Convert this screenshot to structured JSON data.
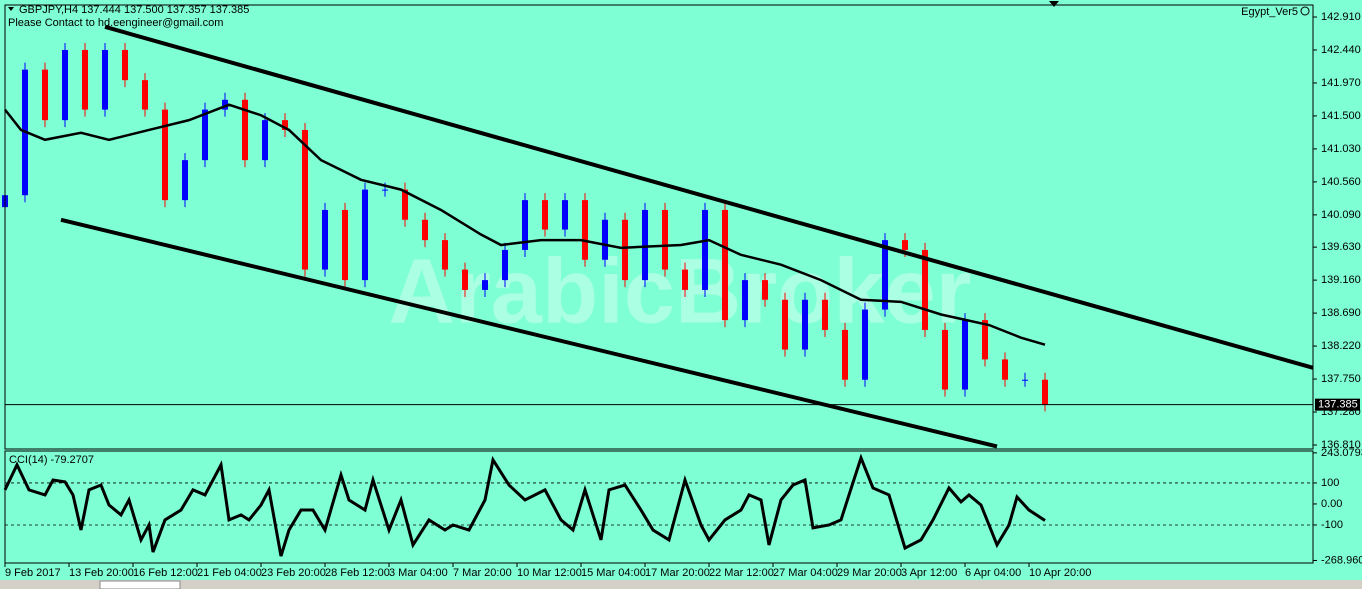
{
  "chart_data": [
    {
      "type": "candlestick",
      "title": "GBPJPY,H4  137.444 137.500 137.357 137.385",
      "subtitle": "Please Contact to hd.eengineer@gmail.com",
      "annotations": [
        "Egypt_Ver5",
        "ArabicBroker"
      ],
      "up_color": "#0000ff",
      "down_color": "#ff0000",
      "xlim": [
        0,
        327
      ],
      "ylim": [
        136.753,
        143.081
      ],
      "yticks": [
        {
          "value": 142.91,
          "label": "142.910"
        },
        {
          "value": 142.44,
          "label": "142.440"
        },
        {
          "value": 141.97,
          "label": "141.970"
        },
        {
          "value": 141.5,
          "label": "141.500"
        },
        {
          "value": 141.03,
          "label": "141.030"
        },
        {
          "value": 140.56,
          "label": "140.560"
        },
        {
          "value": 140.09,
          "label": "140.090"
        },
        {
          "value": 139.63,
          "label": "139.630"
        },
        {
          "value": 139.16,
          "label": "139.160"
        },
        {
          "value": 138.69,
          "label": "138.690"
        },
        {
          "value": 138.22,
          "label": "138.220"
        },
        {
          "value": 137.75,
          "label": "137.750"
        },
        {
          "value": 137.28,
          "label": "137.280"
        },
        {
          "value": 136.81,
          "label": "136.810"
        }
      ],
      "last_price": {
        "value": 137.385,
        "label": "137.385"
      },
      "candles": {
        "x": [
          0,
          5,
          10,
          15,
          20,
          25,
          30,
          35,
          40,
          45,
          50,
          55,
          60,
          65,
          70,
          75,
          80,
          85,
          90,
          95,
          100,
          105,
          110,
          115,
          120,
          125,
          130,
          135,
          140,
          145,
          150,
          155,
          160,
          165,
          170,
          175,
          180,
          185,
          190,
          195,
          200,
          205,
          210,
          215,
          220,
          225,
          230,
          235,
          240,
          245,
          250,
          255,
          260
        ],
        "open": [
          140.2,
          140.37,
          142.16,
          141.44,
          142.44,
          141.59,
          142.44,
          142.01,
          141.59,
          140.3,
          140.87,
          141.59,
          141.73,
          140.87,
          141.44,
          141.3,
          139.31,
          140.16,
          139.16,
          140.45,
          140.45,
          140.02,
          139.73,
          139.31,
          139.02,
          139.16,
          139.59,
          140.3,
          139.88,
          140.3,
          139.45,
          140.02,
          139.16,
          140.16,
          139.31,
          139.02,
          140.16,
          138.59,
          139.16,
          138.88,
          138.17,
          138.88,
          138.45,
          137.74,
          138.74,
          139.73,
          139.59,
          138.45,
          137.6,
          138.59,
          138.03,
          137.74,
          137.74
        ],
        "high": [
          140.47,
          142.26,
          142.26,
          142.54,
          142.54,
          142.54,
          142.54,
          142.11,
          141.69,
          140.97,
          141.69,
          141.83,
          141.83,
          141.54,
          141.54,
          141.4,
          140.26,
          140.26,
          140.55,
          140.55,
          140.55,
          140.12,
          139.83,
          139.41,
          139.26,
          139.69,
          140.4,
          140.4,
          140.4,
          140.4,
          140.12,
          140.12,
          140.26,
          140.26,
          139.41,
          140.26,
          140.26,
          139.26,
          139.26,
          138.98,
          138.98,
          138.98,
          138.55,
          138.84,
          139.83,
          139.83,
          139.69,
          138.55,
          138.69,
          138.69,
          138.13,
          137.84,
          137.84
        ],
        "low": [
          140.1,
          140.27,
          141.34,
          141.34,
          141.49,
          141.49,
          141.91,
          141.49,
          140.2,
          140.2,
          140.77,
          141.49,
          140.77,
          140.77,
          141.2,
          139.21,
          139.21,
          139.06,
          139.06,
          140.35,
          139.92,
          139.63,
          139.21,
          138.92,
          138.92,
          139.06,
          139.49,
          139.78,
          139.78,
          139.35,
          139.35,
          139.06,
          139.06,
          139.21,
          138.92,
          138.92,
          138.49,
          138.49,
          138.78,
          138.07,
          138.07,
          138.35,
          137.64,
          137.64,
          138.64,
          139.49,
          138.35,
          137.5,
          137.5,
          137.93,
          137.64,
          137.64,
          137.29
        ],
        "close": [
          140.37,
          142.16,
          141.44,
          142.44,
          141.59,
          142.44,
          142.01,
          141.59,
          140.3,
          140.87,
          141.59,
          141.73,
          140.87,
          141.44,
          141.3,
          139.31,
          140.16,
          139.16,
          140.45,
          140.45,
          140.02,
          139.73,
          139.31,
          139.02,
          139.16,
          139.59,
          140.3,
          139.88,
          140.3,
          139.45,
          140.02,
          139.16,
          140.16,
          139.31,
          139.02,
          140.16,
          138.59,
          139.16,
          138.88,
          138.17,
          138.88,
          138.45,
          137.74,
          138.74,
          139.73,
          139.59,
          138.45,
          137.6,
          138.59,
          138.03,
          137.74,
          137.74,
          137.385
        ]
      },
      "moving_average": {
        "color": "#000000",
        "x": [
          0,
          4,
          10,
          19,
          26,
          36,
          46,
          56,
          64,
          71,
          79,
          89,
          99,
          109,
          119,
          124,
          134,
          144,
          154,
          169,
          176,
          184,
          194,
          204,
          214,
          224,
          234,
          246,
          254,
          260
        ],
        "values": [
          141.59,
          141.3,
          141.16,
          141.26,
          141.16,
          141.3,
          141.44,
          141.66,
          141.51,
          141.3,
          140.87,
          140.59,
          140.45,
          140.16,
          139.81,
          139.66,
          139.73,
          139.73,
          139.62,
          139.66,
          139.73,
          139.52,
          139.38,
          139.16,
          138.88,
          138.85,
          138.67,
          138.52,
          138.34,
          138.24
        ]
      },
      "trendlines": [
        {
          "x": [
            25,
            327
          ],
          "values": [
            142.77,
            137.91
          ]
        },
        {
          "x": [
            14,
            248
          ],
          "values": [
            140.02,
            136.79
          ]
        }
      ]
    },
    {
      "type": "line",
      "title": "CCI(14) -79.2707",
      "color": "#000000",
      "xlim": [
        0,
        327
      ],
      "ylim": [
        -281,
        252
      ],
      "yticks": [
        243.0793,
        100,
        {
          "value": 0,
          "label": "0.00"
        },
        -100,
        -268.9605
      ],
      "dashed_levels": [
        100,
        -100
      ],
      "xticks": [
        {
          "value": 0,
          "label": "9 Feb 2017"
        },
        {
          "value": 16,
          "label": "13 Feb 20:00"
        },
        {
          "value": 32,
          "label": "16 Feb 12:00"
        },
        {
          "value": 48,
          "label": "21 Feb 04:00"
        },
        {
          "value": 64,
          "label": "23 Feb 20:00"
        },
        {
          "value": 80,
          "label": "28 Feb 12:00"
        },
        {
          "value": 96,
          "label": "3 Mar 04:00"
        },
        {
          "value": 112,
          "label": "7 Mar 20:00"
        },
        {
          "value": 128,
          "label": "10 Mar 12:00"
        },
        {
          "value": 144,
          "label": "15 Mar 04:00"
        },
        {
          "value": 160,
          "label": "17 Mar 20:00"
        },
        {
          "value": 176,
          "label": "22 Mar 12:00"
        },
        {
          "value": 192,
          "label": "27 Mar 04:00"
        },
        {
          "value": 208,
          "label": "29 Mar 20:00"
        },
        {
          "value": 224,
          "label": "3 Apr 12:00"
        },
        {
          "value": 240,
          "label": "6 Apr 04:00"
        },
        {
          "value": 256,
          "label": "10 Apr 20:00"
        }
      ],
      "x": [
        0,
        3,
        6,
        10,
        12,
        15,
        17,
        19,
        21,
        24,
        26,
        29,
        31,
        34,
        36,
        37,
        40,
        44,
        47,
        50,
        54,
        56,
        59,
        61,
        64,
        66,
        69,
        71,
        74,
        77,
        80,
        84,
        86,
        90,
        92,
        96,
        99,
        102,
        106,
        110,
        112,
        116,
        120,
        122,
        126,
        130,
        135,
        139,
        142,
        145,
        149,
        151,
        155,
        159,
        162,
        166,
        170,
        174,
        176,
        180,
        184,
        186,
        189,
        191,
        194,
        197,
        200,
        202,
        206,
        209,
        211,
        214,
        217,
        221,
        225,
        229,
        232,
        236,
        239,
        241,
        244,
        246,
        248,
        251,
        253,
        256,
        260
      ],
      "values": [
        67,
        186,
        67,
        43,
        114,
        105,
        43,
        -124,
        67,
        90,
        -5,
        -52,
        19,
        -171,
        -100,
        -229,
        -76,
        -29,
        67,
        43,
        186,
        -76,
        -52,
        -76,
        -5,
        67,
        -248,
        -124,
        -29,
        -29,
        -124,
        138,
        19,
        -29,
        114,
        -124,
        19,
        -195,
        -76,
        -124,
        -100,
        -124,
        19,
        210,
        90,
        19,
        67,
        -76,
        -124,
        67,
        -171,
        67,
        90,
        -29,
        -124,
        -171,
        114,
        -100,
        -171,
        -76,
        -29,
        43,
        19,
        -195,
        19,
        90,
        114,
        -114,
        -100,
        -76,
        43,
        219,
        76,
        43,
        -210,
        -171,
        -76,
        76,
        10,
        43,
        -5,
        -100,
        -195,
        -100,
        33,
        -29,
        -79
      ]
    }
  ]
}
